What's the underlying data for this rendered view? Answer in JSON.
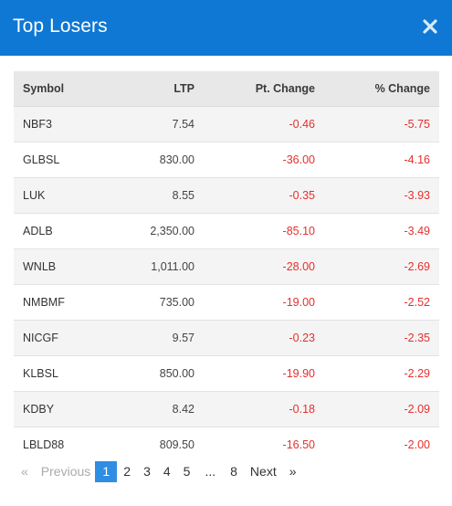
{
  "modal": {
    "title": "Top Losers",
    "close_icon": "close-icon"
  },
  "table": {
    "headers": {
      "symbol": "Symbol",
      "ltp": "LTP",
      "pt_change": "Pt. Change",
      "pct_change": "% Change"
    },
    "rows": [
      {
        "symbol": "NBF3",
        "ltp": "7.54",
        "pt_change": "-0.46",
        "pct_change": "-5.75"
      },
      {
        "symbol": "GLBSL",
        "ltp": "830.00",
        "pt_change": "-36.00",
        "pct_change": "-4.16"
      },
      {
        "symbol": "LUK",
        "ltp": "8.55",
        "pt_change": "-0.35",
        "pct_change": "-3.93"
      },
      {
        "symbol": "ADLB",
        "ltp": "2,350.00",
        "pt_change": "-85.10",
        "pct_change": "-3.49"
      },
      {
        "symbol": "WNLB",
        "ltp": "1,011.00",
        "pt_change": "-28.00",
        "pct_change": "-2.69"
      },
      {
        "symbol": "NMBMF",
        "ltp": "735.00",
        "pt_change": "-19.00",
        "pct_change": "-2.52"
      },
      {
        "symbol": "NICGF",
        "ltp": "9.57",
        "pt_change": "-0.23",
        "pct_change": "-2.35"
      },
      {
        "symbol": "KLBSL",
        "ltp": "850.00",
        "pt_change": "-19.90",
        "pct_change": "-2.29"
      },
      {
        "symbol": "KDBY",
        "ltp": "8.42",
        "pt_change": "-0.18",
        "pct_change": "-2.09"
      },
      {
        "symbol": "LBLD88",
        "ltp": "809.50",
        "pt_change": "-16.50",
        "pct_change": "-2.00"
      }
    ]
  },
  "pagination": {
    "prev_arrow": "«",
    "prev_label": "Previous",
    "pages": [
      "1",
      "2",
      "3",
      "4",
      "5"
    ],
    "ellipsis": "...",
    "last_page": "8",
    "next_label": "Next",
    "next_arrow": "»",
    "current_page": "1"
  },
  "colors": {
    "header_bg": "#0f78d4",
    "negative": "#e4302e",
    "active_page": "#2f8de4"
  }
}
